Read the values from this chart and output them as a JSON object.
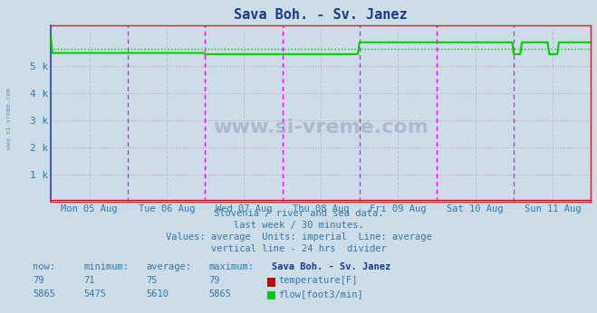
{
  "title": "Sava Boh. - Sv. Janez",
  "title_color": "#1a3a8a",
  "bg_color": "#ccdde8",
  "plot_bg_color": "#ccdde8",
  "ylim": [
    0,
    6500
  ],
  "yticks": [
    1000,
    2000,
    3000,
    4000,
    5000
  ],
  "ytick_labels": [
    "1 k",
    "2 k",
    "3 k",
    "4 k",
    "5 k"
  ],
  "ylabel_color": "#3377aa",
  "grid_color": "#dd9999",
  "vline_color": "#ff00ff",
  "vline_mid_color": "#999999",
  "xticklabels": [
    "Mon 05 Aug",
    "Tue 06 Aug",
    "Wed 07 Aug",
    "Thu 08 Aug",
    "Fri 09 Aug",
    "Sat 10 Aug",
    "Sun 11 Aug"
  ],
  "xlabel_color": "#3377aa",
  "n_points": 337,
  "temp_value": 79,
  "temp_min": 71,
  "temp_avg": 75,
  "temp_max": 79,
  "temp_now": 79,
  "temp_color": "#cc0000",
  "flow_color": "#00cc00",
  "flow_min": 5475,
  "flow_avg": 5610,
  "flow_max": 5865,
  "flow_now": 5865,
  "watermark": "www.si-vreme.com",
  "watermark_color": "#8899bb",
  "subtitle1": "Slovenia / river and sea data.",
  "subtitle2": "last week / 30 minutes.",
  "subtitle3": "Values: average  Units: imperial  Line: average",
  "subtitle4": "vertical line - 24 hrs  divider",
  "subtitle_color": "#3377aa",
  "legend_title": "Sava Boh. - Sv. Janez",
  "legend_title_color": "#1a3a8a",
  "spine_left_color": "#2244aa",
  "spine_bottom_color": "#cc2222",
  "spine_right_color": "#cc2222",
  "spine_top_color": "#cc2222"
}
